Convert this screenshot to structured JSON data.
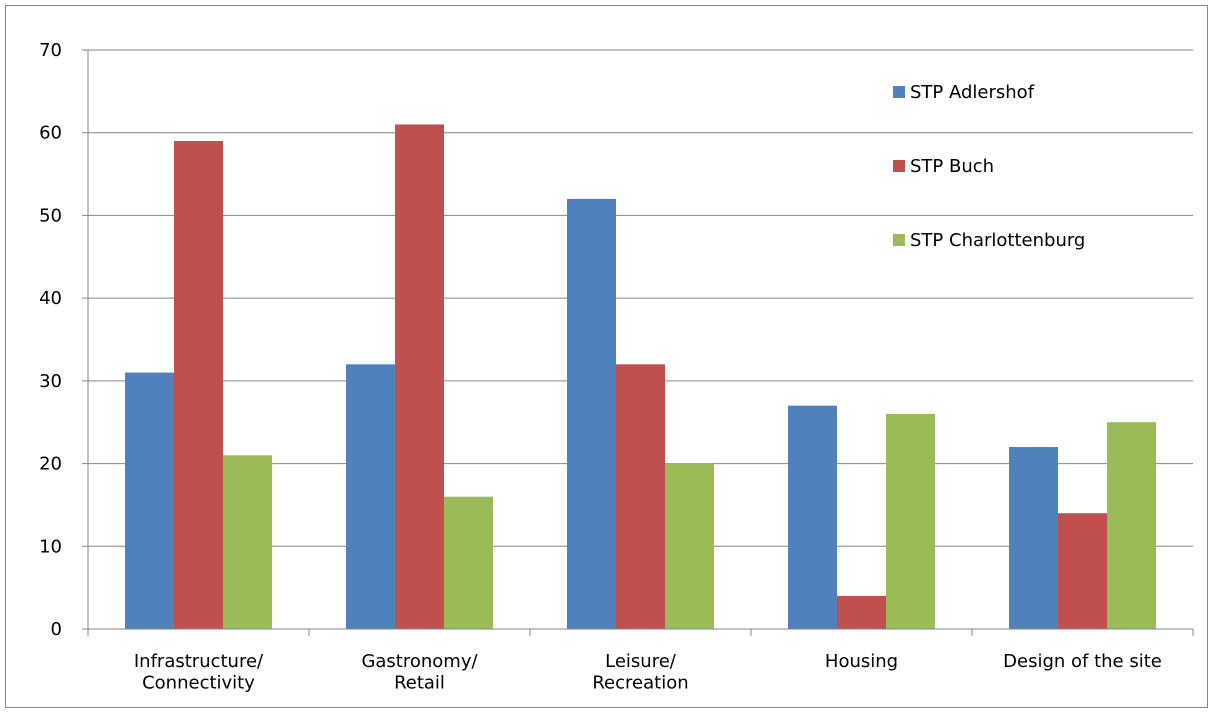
{
  "chart_data": {
    "type": "bar",
    "categories": [
      "Infrastructure/\nConnectivity",
      "Gastronomy/\nRetail",
      "Leisure/\nRecreation",
      "Housing",
      "Design of the site"
    ],
    "series": [
      {
        "name": "STP Adlershof",
        "color": "#4f81bd",
        "values": [
          31,
          32,
          52,
          27,
          22
        ]
      },
      {
        "name": "STP Buch",
        "color": "#c0504d",
        "values": [
          59,
          61,
          32,
          4,
          14
        ]
      },
      {
        "name": "STP Charlottenburg",
        "color": "#9bbb59",
        "values": [
          21,
          16,
          20,
          26,
          25
        ]
      }
    ],
    "ylim": [
      0,
      70
    ],
    "yticks": [
      0,
      10,
      20,
      30,
      40,
      50,
      60,
      70
    ],
    "grid": true,
    "legend": "top-right"
  }
}
